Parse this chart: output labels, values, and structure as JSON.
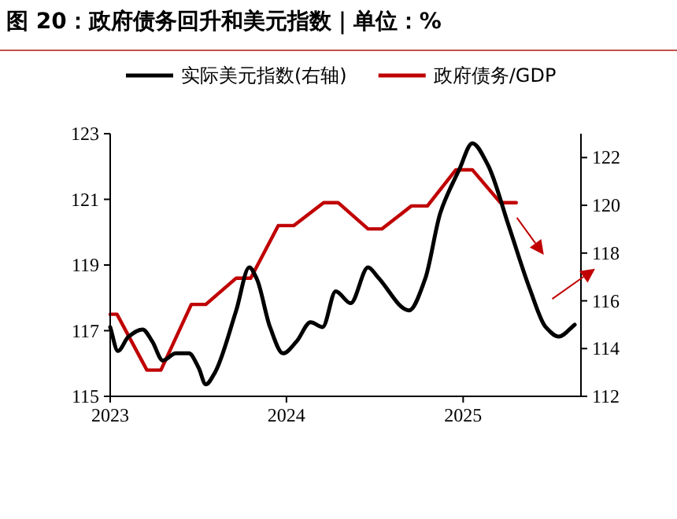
{
  "chart_data": {
    "type": "line",
    "title": "图 20：政府债务回升和美元指数｜单位：%",
    "legend": "top",
    "line_style": "solid",
    "marker": "none",
    "grid": false,
    "series": [
      {
        "name": "实际美元指数(右轴)",
        "color": "#000000",
        "axis": "y2",
        "x": [
          "2023-01-01",
          "2023-01-17",
          "2023-02-08",
          "2023-03-09",
          "2023-03-29",
          "2023-04-20",
          "2023-05-17",
          "2023-06-13",
          "2023-07-03",
          "2023-07-18",
          "2023-08-06",
          "2023-09-19",
          "2023-10-16",
          "2023-11-01",
          "2023-11-28",
          "2023-12-25",
          "2024-01-22",
          "2024-02-20",
          "2024-03-16",
          "2024-04-12",
          "2024-05-13",
          "2024-06-18",
          "2024-07-08",
          "2024-09-11",
          "2024-10-14",
          "2024-11-15",
          "2024-12-24",
          "2025-01-20",
          "2025-02-21",
          "2025-04-06",
          "2025-05-19",
          "2025-06-21",
          "2025-07-18",
          "2025-08-20"
        ],
        "values": [
          114.9,
          113.9,
          114.5,
          114.8,
          114.3,
          113.5,
          113.8,
          113.8,
          113.2,
          112.5,
          113.0,
          115.6,
          117.4,
          116.9,
          114.9,
          113.8,
          114.3,
          115.1,
          114.9,
          116.4,
          115.9,
          117.4,
          117.0,
          115.6,
          116.9,
          119.7,
          121.5,
          122.6,
          121.7,
          119.1,
          116.5,
          114.9,
          114.5,
          115.0
        ]
      },
      {
        "name": "政府债务/GDP",
        "color": "#c00000",
        "x": [
          "2023-01-01",
          "2023-01-15",
          "2023-03-18",
          "2023-04-16",
          "2023-06-18",
          "2023-07-18",
          "2023-09-19",
          "2023-10-19",
          "2023-12-15",
          "2024-01-16",
          "2024-03-18",
          "2024-04-17",
          "2024-06-18",
          "2024-07-17",
          "2024-09-16",
          "2024-10-19",
          "2024-12-17",
          "2025-01-20",
          "2025-03-19",
          "2025-04-21"
        ],
        "values": [
          117.5,
          117.5,
          115.8,
          115.8,
          117.8,
          117.8,
          118.6,
          118.6,
          120.2,
          120.2,
          120.9,
          120.9,
          120.1,
          120.1,
          120.8,
          120.8,
          121.9,
          121.9,
          120.9,
          120.9
        ]
      }
    ],
    "xlim": [
      "2023-01-01",
      "2025-09-02"
    ],
    "xticks": [
      {
        "value": "2023-01-01",
        "label": "2023"
      },
      {
        "value": "2024-01-01",
        "label": "2024"
      },
      {
        "value": "2025-01-01",
        "label": "2025"
      }
    ],
    "ylim": [
      115,
      123
    ],
    "yticks": [
      115,
      117,
      119,
      121,
      123
    ],
    "y2lim": [
      112,
      123
    ],
    "y2ticks": [
      112,
      114,
      116,
      118,
      120,
      122
    ]
  }
}
